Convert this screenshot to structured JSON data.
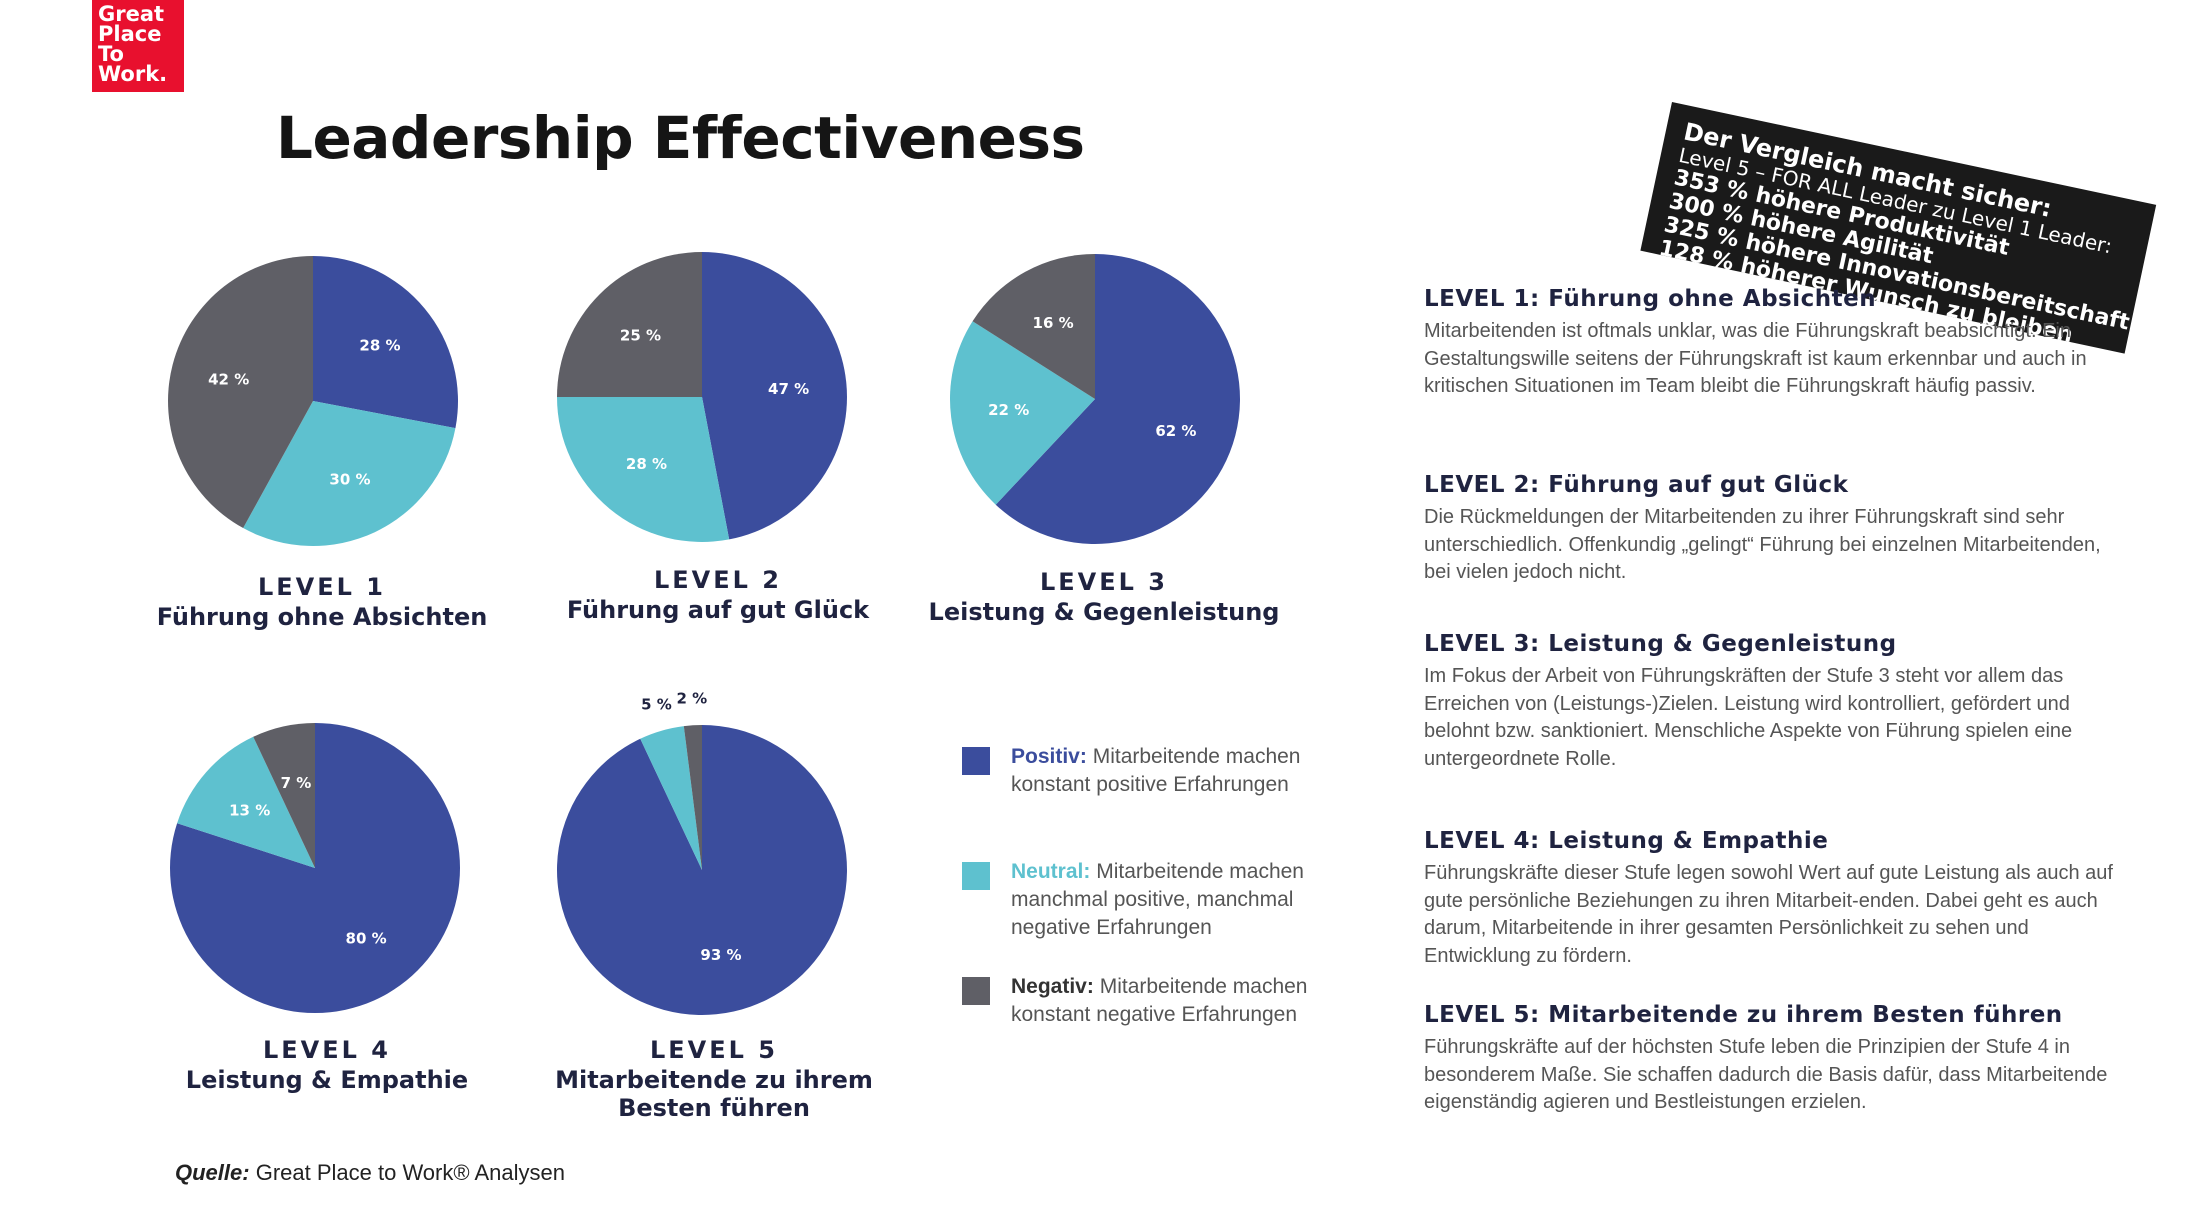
{
  "logo": {
    "lines": [
      "Great",
      "Place",
      "To",
      "Work."
    ]
  },
  "title": "Leadership Effectiveness",
  "banner": {
    "heading": "Der Vergleich macht sicher:",
    "subheading": "Level 5 – FOR ALL Leader zu Level 1 Leader:",
    "lines": [
      "353 % höhere Produktivität",
      "300 % höhere Agilität",
      "325 % höhere Innovationsbereitschaft",
      "128 % höherer Wunsch zu bleiben"
    ]
  },
  "colors": {
    "positive": "#3b4d9d",
    "neutral": "#5ec1cf",
    "negative": "#5f5f66"
  },
  "chart_data": [
    {
      "type": "pie",
      "level": "LEVEL 1",
      "name": "Führung ohne Absichten",
      "slices": [
        {
          "category": "Positiv",
          "value": 28,
          "label": "28 %"
        },
        {
          "category": "Neutral",
          "value": 30,
          "label": "30 %"
        },
        {
          "category": "Negativ",
          "value": 42,
          "label": "42 %"
        }
      ]
    },
    {
      "type": "pie",
      "level": "LEVEL 2",
      "name": "Führung auf gut Glück",
      "slices": [
        {
          "category": "Positiv",
          "value": 47,
          "label": "47 %"
        },
        {
          "category": "Neutral",
          "value": 28,
          "label": "28 %"
        },
        {
          "category": "Negativ",
          "value": 25,
          "label": "25 %"
        }
      ]
    },
    {
      "type": "pie",
      "level": "LEVEL 3",
      "name": "Leistung & Gegenleistung",
      "slices": [
        {
          "category": "Positiv",
          "value": 62,
          "label": "62 %"
        },
        {
          "category": "Neutral",
          "value": 22,
          "label": "22 %"
        },
        {
          "category": "Negativ",
          "value": 16,
          "label": "16 %"
        }
      ]
    },
    {
      "type": "pie",
      "level": "LEVEL 4",
      "name": "Leistung & Empathie",
      "slices": [
        {
          "category": "Positiv",
          "value": 80,
          "label": "80 %"
        },
        {
          "category": "Neutral",
          "value": 13,
          "label": "13 %"
        },
        {
          "category": "Negativ",
          "value": 7,
          "label": "7 %"
        }
      ]
    },
    {
      "type": "pie",
      "level": "LEVEL 5",
      "name": "Mitarbeitende zu ihrem Besten führen",
      "slices": [
        {
          "category": "Positiv",
          "value": 93,
          "label": "93 %"
        },
        {
          "category": "Neutral",
          "value": 5,
          "label": "5 %"
        },
        {
          "category": "Negativ",
          "value": 2,
          "label": "2 %"
        }
      ]
    }
  ],
  "legend": [
    {
      "label": "Positiv:",
      "text": "Mitarbeitende machen konstant positive Erfahrungen"
    },
    {
      "label": "Neutral:",
      "text": "Mitarbeitende machen manchmal positive, manchmal negative Erfahrungen"
    },
    {
      "label": "Negativ:",
      "text": "Mitarbeitende machen konstant negative Erfahrungen"
    }
  ],
  "descriptions": [
    {
      "title": "LEVEL 1: Führung ohne Absichten",
      "text": "Mitarbeitenden ist oftmals unklar, was die Führungskraft beabsichtigt. Ein Gestaltungswille seitens der Führungskraft ist kaum erkennbar und auch in kritischen Situationen im Team bleibt die Führungskraft häufig passiv."
    },
    {
      "title": "LEVEL 2: Führung auf gut Glück",
      "text": "Die Rückmeldungen der Mitarbeitenden zu ihrer Führungskraft sind sehr unterschiedlich. Offenkundig „gelingt“ Führung bei einzelnen Mitarbeitenden, bei vielen jedoch nicht."
    },
    {
      "title": "LEVEL 3: Leistung & Gegenleistung",
      "text": "Im Fokus der Arbeit von Führungskräften der Stufe 3 steht vor allem das Erreichen von (Leistungs-)Zielen. Leistung wird kontrolliert, gefördert und belohnt bzw. sanktioniert. Menschliche Aspekte von Führung spielen eine untergeordnete Rolle."
    },
    {
      "title": "LEVEL 4: Leistung & Empathie",
      "text": "Führungskräfte dieser Stufe legen sowohl Wert auf gute Leistung als auch auf gute persönliche Beziehungen zu ihren Mitarbeit-enden. Dabei geht es auch darum, Mitarbeitende in ihrer gesamten Persönlichkeit zu sehen und Entwicklung zu fördern."
    },
    {
      "title": "LEVEL 5: Mitarbeitende zu ihrem Besten führen",
      "text": "Führungskräfte auf der höchsten Stufe leben die Prinzipien der Stufe 4 in besonderem Maße. Sie schaffen dadurch die Basis dafür, dass Mitarbeitende eigenständig agieren und Bestleistungen erzielen."
    }
  ],
  "source": {
    "label": "Quelle:",
    "text": "Great Place to Work® Analysen"
  }
}
